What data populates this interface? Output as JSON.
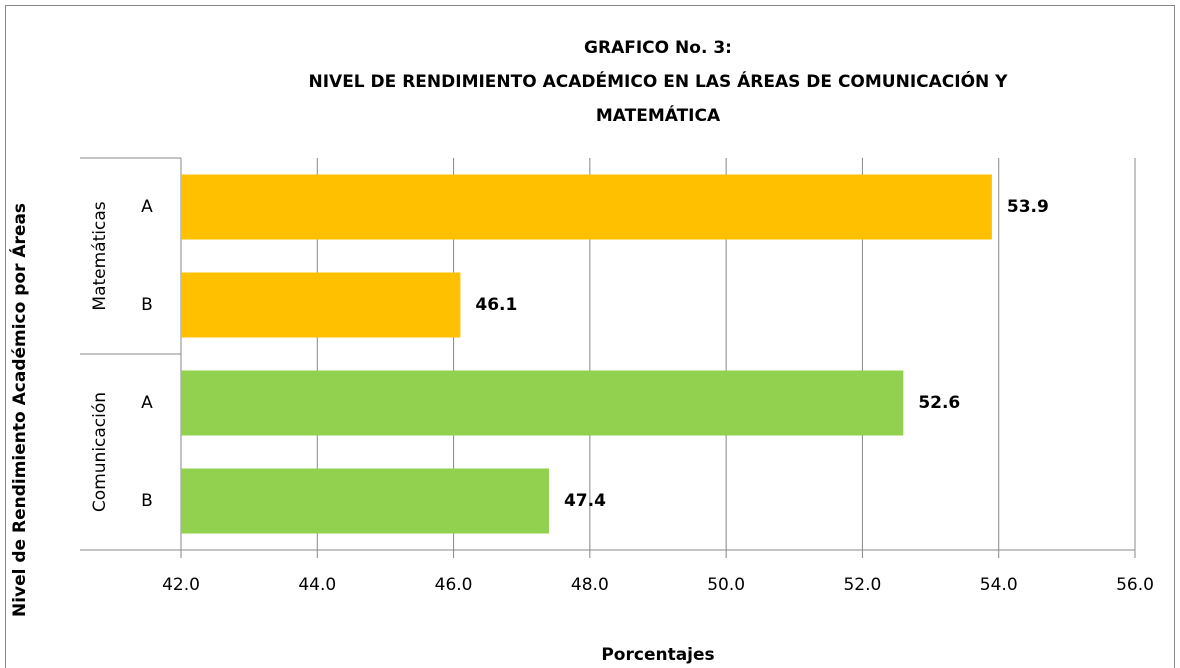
{
  "chart_data": {
    "type": "bar",
    "orientation": "horizontal",
    "title": [
      "GRAFICO No. 3:",
      "NIVEL DE RENDIMIENTO ACADÉMICO EN LAS ÁREAS DE COMUNICACIÓN Y",
      "MATEMÁTICA"
    ],
    "x_label": "Porcentajes",
    "y_label": "Nivel de Rendimiento Académico por Áreas",
    "series": [
      {
        "name": "Matemáticas",
        "color": "#ffc000",
        "categories": [
          "A",
          "B"
        ],
        "values": [
          53.9,
          46.1
        ]
      },
      {
        "name": "Comunicación",
        "color": "#92d050",
        "categories": [
          "A",
          "B"
        ],
        "values": [
          52.6,
          47.4
        ]
      }
    ],
    "xlim": [
      42,
      56
    ],
    "xticks": [
      {
        "value": 42,
        "label": "42.0"
      },
      {
        "value": 44,
        "label": "44.0"
      },
      {
        "value": 46,
        "label": "46.0"
      },
      {
        "value": 48,
        "label": "48.0"
      },
      {
        "value": 50,
        "label": "50.0"
      },
      {
        "value": 52,
        "label": "52.0"
      },
      {
        "value": 54,
        "label": "54.0"
      },
      {
        "value": 56,
        "label": "56.0"
      }
    ],
    "grid": true
  }
}
